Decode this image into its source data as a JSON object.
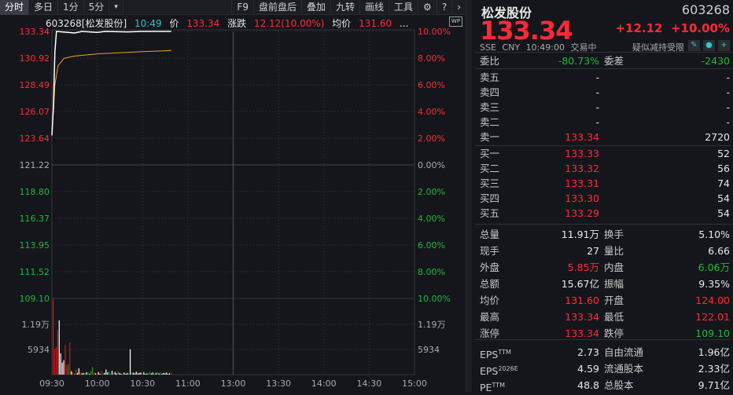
{
  "toolbar": {
    "left": [
      "分时",
      "多日",
      "1分",
      "5分",
      "▾"
    ],
    "right": [
      "F9",
      "盘前盘后",
      "叠加",
      "九转",
      "画线",
      "工具"
    ],
    "icons": [
      "gear-icon",
      "help-icon",
      "chevron-right-icon"
    ]
  },
  "info": {
    "code_name": "603268[松发股份]",
    "time": "10:49",
    "price_label": "价",
    "price": "133.34",
    "change_label": "涨跌",
    "change": "12.12(10.00%)",
    "avg_label": "均价",
    "avg": "131.60",
    "more": "...",
    "wp": "WP"
  },
  "chart_data": {
    "type": "line",
    "price_axis_left": [
      "133.34",
      "130.92",
      "128.49",
      "126.07",
      "123.64",
      "121.22",
      "118.80",
      "116.37",
      "113.95",
      "111.52",
      "109.10"
    ],
    "pct_axis_right": [
      "10.00%",
      "8.00%",
      "6.00%",
      "4.00%",
      "2.00%",
      "0.00%",
      "2.00%",
      "4.00%",
      "6.00%",
      "8.00%",
      "10.00%"
    ],
    "volume_axis": [
      "1.19万",
      "5934"
    ],
    "x_ticks": [
      "09:30",
      "10:00",
      "10:30",
      "11:00",
      "13:00",
      "13:30",
      "14:00",
      "14:30",
      "15:00"
    ],
    "ylim": [
      109.1,
      133.34
    ],
    "prev_close": 121.22,
    "price_series": {
      "color": "#ffffff",
      "points": [
        [
          "09:30",
          123.9
        ],
        [
          "09:31",
          126.5
        ],
        [
          "09:32",
          131.5
        ],
        [
          "09:33",
          133.34
        ],
        [
          "09:45",
          133.2
        ],
        [
          "09:50",
          133.34
        ],
        [
          "10:00",
          133.25
        ],
        [
          "10:05",
          133.34
        ],
        [
          "10:20",
          133.3
        ],
        [
          "10:30",
          133.34
        ],
        [
          "10:49",
          133.34
        ]
      ]
    },
    "avg_series": {
      "color": "#f0a020",
      "points": [
        [
          "09:30",
          124.3
        ],
        [
          "09:31",
          126.0
        ],
        [
          "09:32",
          128.5
        ],
        [
          "09:34",
          130.2
        ],
        [
          "09:38",
          130.9
        ],
        [
          "09:45",
          131.1
        ],
        [
          "10:00",
          131.3
        ],
        [
          "10:30",
          131.5
        ],
        [
          "10:49",
          131.6
        ]
      ]
    },
    "volume": [
      18000,
      6000,
      6500,
      10500,
      12800,
      5000,
      2800,
      3400,
      7000,
      2300,
      2400,
      7500,
      800,
      600,
      300,
      1200,
      400,
      1500,
      500,
      300,
      400,
      300,
      600,
      500,
      200,
      800,
      1800,
      500,
      300,
      400,
      600,
      200,
      900,
      300,
      400,
      1200,
      500,
      700,
      300,
      900,
      400,
      600,
      300,
      800,
      400,
      200,
      300,
      500,
      200,
      400,
      300,
      6000,
      400,
      500,
      300,
      700,
      300,
      400,
      500,
      300,
      600,
      200,
      300,
      400,
      700,
      300,
      500,
      200,
      400,
      600,
      300,
      500,
      200,
      400,
      300,
      500,
      200,
      300,
      400
    ],
    "volume_colors": "rrrrwwwwrrgrwrgrwwrwwgwgwggrwrwwrgwwwggwrwwgwwrwwwgwgwwwwwwrwwwggwwgwgwgwwwwwwr"
  },
  "quote": {
    "name": "松发股份",
    "code": "603268",
    "price": "133.34",
    "change": "+12.12",
    "pct": "+10.00%",
    "exchange": "SSE",
    "currency": "CNY",
    "time": "10:49:00",
    "status": "交易中",
    "tag": "疑似减持受限",
    "ratio_label": "委比",
    "ratio": "-80.73%",
    "diff_label": "委差",
    "diff": "-2430",
    "asks": [
      {
        "label": "卖五",
        "price": "-",
        "vol": "-"
      },
      {
        "label": "卖四",
        "price": "-",
        "vol": "-"
      },
      {
        "label": "卖三",
        "price": "-",
        "vol": "-"
      },
      {
        "label": "卖二",
        "price": "-",
        "vol": "-"
      },
      {
        "label": "卖一",
        "price": "133.34",
        "vol": "2720"
      }
    ],
    "bids": [
      {
        "label": "买一",
        "price": "133.33",
        "vol": "52"
      },
      {
        "label": "买二",
        "price": "133.32",
        "vol": "56"
      },
      {
        "label": "买三",
        "price": "133.31",
        "vol": "74"
      },
      {
        "label": "买四",
        "price": "133.30",
        "vol": "54"
      },
      {
        "label": "买五",
        "price": "133.29",
        "vol": "54"
      }
    ],
    "stats": [
      [
        "总量",
        "11.91万",
        "white",
        "换手",
        "5.10%",
        "white"
      ],
      [
        "现手",
        "27",
        "white",
        "量比",
        "6.66",
        "white"
      ],
      [
        "外盘",
        "5.85万",
        "red",
        "内盘",
        "6.06万",
        "green"
      ],
      [
        "总额",
        "15.67亿",
        "white",
        "振幅",
        "9.35%",
        "white"
      ],
      [
        "均价",
        "131.60",
        "red",
        "开盘",
        "124.00",
        "red"
      ],
      [
        "最高",
        "133.34",
        "red",
        "最低",
        "122.01",
        "red"
      ],
      [
        "涨停",
        "133.34",
        "red",
        "跌停",
        "109.10",
        "green"
      ]
    ],
    "fund": [
      [
        "EPS",
        "TTM",
        "2.73",
        "自由流通",
        "1.96亿"
      ],
      [
        "EPS",
        "2026E",
        "4.59",
        "流通股本",
        "2.33亿"
      ],
      [
        "PE",
        "TTM",
        "48.8",
        "总股本",
        "9.71亿"
      ]
    ]
  }
}
